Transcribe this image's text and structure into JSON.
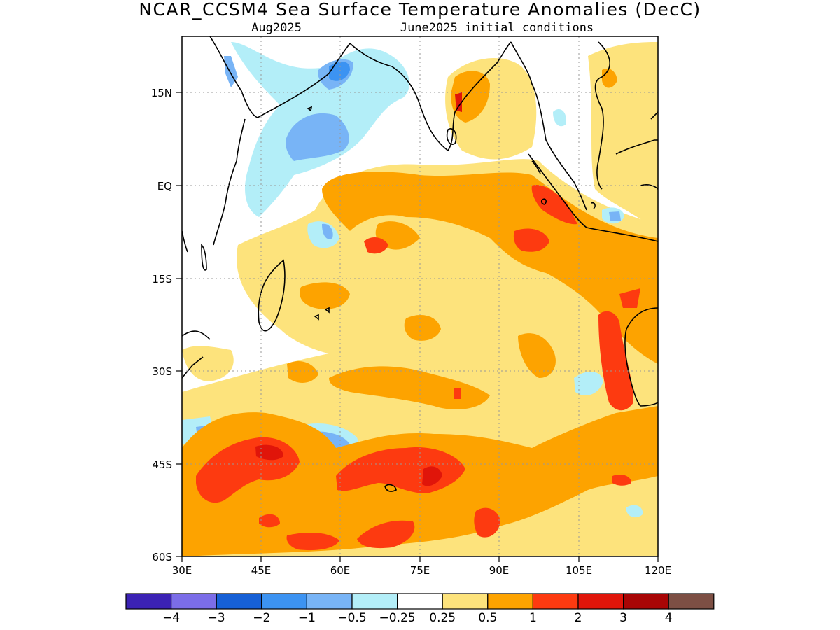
{
  "title": "NCAR_CCSM4 Sea Surface Temperature Anomalies (DecC)",
  "subtitle_left": "Aug2025",
  "subtitle_right": "June2025 initial conditions",
  "map": {
    "lon_range": [
      30,
      120
    ],
    "lat_range": [
      -60,
      24
    ],
    "x_ticks": [
      "30E",
      "45E",
      "60E",
      "75E",
      "90E",
      "105E",
      "120E"
    ],
    "y_ticks": [
      "15N",
      "EQ",
      "15S",
      "30S",
      "45S",
      "60S"
    ],
    "grid": "dotted"
  },
  "legend": {
    "colors": [
      "#3b22b4",
      "#7b6de8",
      "#1660d6",
      "#3c93f2",
      "#78b4f6",
      "#b3eef8",
      "#ffffff",
      "#fde37c",
      "#fda300",
      "#fd3a10",
      "#e0150a",
      "#a80505",
      "#7d4f44"
    ],
    "labels": [
      "−4",
      "−3",
      "−2",
      "−1",
      "−0.5",
      "−0.25",
      "0.25",
      "0.5",
      "1",
      "2",
      "3",
      "4"
    ]
  }
}
